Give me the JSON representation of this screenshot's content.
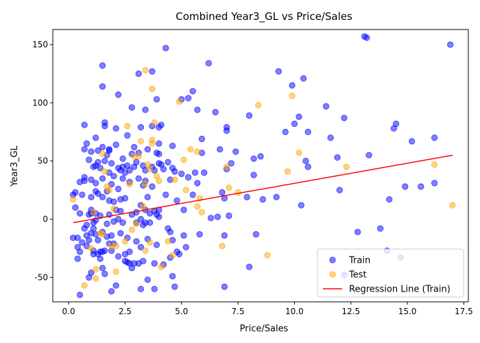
{
  "chart_data": {
    "type": "scatter",
    "title": "Combined Year3_GL vs Price/Sales",
    "xlabel": "Price/Sales",
    "ylabel": "Year3_GL",
    "xlim": [
      -0.7,
      17.7
    ],
    "ylim": [
      -71,
      163
    ],
    "xticks": [
      "0.0",
      "2.5",
      "5.0",
      "7.5",
      "10.0",
      "12.5",
      "15.0",
      "17.5"
    ],
    "xtick_values": [
      0,
      2.5,
      5,
      7.5,
      10,
      12.5,
      15,
      17.5
    ],
    "yticks": [
      "-50",
      "0",
      "50",
      "100",
      "150"
    ],
    "ytick_values": [
      -50,
      0,
      50,
      100,
      150
    ],
    "grid": false,
    "legend": {
      "placement": "bottom-right",
      "entries": [
        {
          "label": "Train",
          "kind": "marker",
          "color": "#0000ff"
        },
        {
          "label": "Test",
          "kind": "marker",
          "color": "#ffa500"
        },
        {
          "label": "Regression Line (Train)",
          "kind": "line",
          "color": "#ff0000"
        }
      ]
    },
    "series": [
      {
        "name": "Train",
        "color": "#0000ff",
        "points": [
          [
            0.2,
            21
          ],
          [
            0.3,
            23
          ],
          [
            0.2,
            -16
          ],
          [
            0.3,
            10
          ],
          [
            0.4,
            -16
          ],
          [
            0.4,
            -24
          ],
          [
            0.4,
            -34
          ],
          [
            0.5,
            32
          ],
          [
            0.5,
            -28
          ],
          [
            0.5,
            5
          ],
          [
            0.5,
            -65
          ],
          [
            0.6,
            21
          ],
          [
            0.6,
            -20
          ],
          [
            0.7,
            33
          ],
          [
            0.7,
            36
          ],
          [
            0.7,
            60
          ],
          [
            0.7,
            81
          ],
          [
            0.7,
            -8
          ],
          [
            0.8,
            65
          ],
          [
            0.8,
            -5
          ],
          [
            0.8,
            -14
          ],
          [
            0.8,
            -23
          ],
          [
            0.9,
            -18
          ],
          [
            0.9,
            -50
          ],
          [
            0.9,
            4
          ],
          [
            0.9,
            51
          ],
          [
            1.0,
            19
          ],
          [
            1.0,
            34
          ],
          [
            1.0,
            5
          ],
          [
            1.0,
            8
          ],
          [
            1.0,
            58
          ],
          [
            1.0,
            -12
          ],
          [
            1.0,
            -46
          ],
          [
            1.1,
            -3
          ],
          [
            1.1,
            -27
          ],
          [
            1.1,
            45
          ],
          [
            1.1,
            -8
          ],
          [
            1.1,
            -30
          ],
          [
            1.2,
            70
          ],
          [
            1.2,
            46
          ],
          [
            1.2,
            24
          ],
          [
            1.2,
            31
          ],
          [
            1.2,
            -1
          ],
          [
            1.2,
            -13
          ],
          [
            1.2,
            5
          ],
          [
            1.3,
            49
          ],
          [
            1.3,
            59
          ],
          [
            1.3,
            22
          ],
          [
            1.3,
            -30
          ],
          [
            1.3,
            -18
          ],
          [
            1.4,
            44
          ],
          [
            1.4,
            3
          ],
          [
            1.4,
            -28
          ],
          [
            1.4,
            -34
          ],
          [
            1.5,
            -42
          ],
          [
            1.5,
            19
          ],
          [
            1.5,
            35
          ],
          [
            1.5,
            114
          ],
          [
            1.5,
            132
          ],
          [
            1.5,
            62
          ],
          [
            1.5,
            -11
          ],
          [
            1.5,
            -28
          ],
          [
            1.6,
            80
          ],
          [
            1.6,
            83
          ],
          [
            1.6,
            50
          ],
          [
            1.6,
            -47
          ],
          [
            1.6,
            -27
          ],
          [
            1.7,
            55
          ],
          [
            1.7,
            24
          ],
          [
            1.7,
            -15
          ],
          [
            1.7,
            -4
          ],
          [
            1.8,
            59
          ],
          [
            1.8,
            60
          ],
          [
            1.8,
            40
          ],
          [
            1.8,
            -21
          ],
          [
            1.8,
            4
          ],
          [
            1.8,
            16
          ],
          [
            1.9,
            48
          ],
          [
            1.9,
            30
          ],
          [
            1.9,
            -27
          ],
          [
            1.9,
            -14
          ],
          [
            1.9,
            -62
          ],
          [
            2.0,
            37
          ],
          [
            2.0,
            15
          ],
          [
            2.0,
            -2
          ],
          [
            2.0,
            -21
          ],
          [
            2.1,
            64
          ],
          [
            2.1,
            78
          ],
          [
            2.1,
            8
          ],
          [
            2.1,
            -57
          ],
          [
            2.2,
            107
          ],
          [
            2.2,
            44
          ],
          [
            2.2,
            26
          ],
          [
            2.2,
            0
          ],
          [
            2.2,
            -32
          ],
          [
            2.3,
            17
          ],
          [
            2.3,
            42
          ],
          [
            2.3,
            7
          ],
          [
            2.3,
            -12
          ],
          [
            2.4,
            52
          ],
          [
            2.4,
            45
          ],
          [
            2.4,
            35
          ],
          [
            2.4,
            -3
          ],
          [
            2.5,
            -36
          ],
          [
            2.5,
            -30
          ],
          [
            2.5,
            18
          ],
          [
            2.5,
            40
          ],
          [
            2.6,
            72
          ],
          [
            2.6,
            46
          ],
          [
            2.6,
            -16
          ],
          [
            2.6,
            -37
          ],
          [
            2.7,
            42
          ],
          [
            2.7,
            32
          ],
          [
            2.7,
            -28
          ],
          [
            2.7,
            -38
          ],
          [
            2.8,
            96
          ],
          [
            2.8,
            4
          ],
          [
            2.8,
            -42
          ],
          [
            2.8,
            56
          ],
          [
            2.9,
            62
          ],
          [
            2.9,
            45
          ],
          [
            2.9,
            -38
          ],
          [
            3.0,
            6
          ],
          [
            3.0,
            49
          ],
          [
            3.0,
            -3
          ],
          [
            3.0,
            -19
          ],
          [
            3.1,
            125
          ],
          [
            3.1,
            57
          ],
          [
            3.1,
            35
          ],
          [
            3.1,
            -38
          ],
          [
            3.2,
            79
          ],
          [
            3.2,
            -60
          ],
          [
            3.2,
            -24
          ],
          [
            3.2,
            0
          ],
          [
            3.2,
            12
          ],
          [
            3.3,
            46
          ],
          [
            3.3,
            29
          ],
          [
            3.3,
            -5
          ],
          [
            3.3,
            -36
          ],
          [
            3.4,
            94
          ],
          [
            3.4,
            42
          ],
          [
            3.4,
            33
          ],
          [
            3.4,
            8
          ],
          [
            3.4,
            -3
          ],
          [
            3.5,
            60
          ],
          [
            3.5,
            19
          ],
          [
            3.5,
            -52
          ],
          [
            3.5,
            -17
          ],
          [
            3.6,
            5
          ],
          [
            3.6,
            -3
          ],
          [
            3.7,
            127
          ],
          [
            3.7,
            80
          ],
          [
            3.7,
            45
          ],
          [
            3.7,
            28
          ],
          [
            3.8,
            42
          ],
          [
            3.8,
            7
          ],
          [
            3.8,
            -38
          ],
          [
            3.8,
            -60
          ],
          [
            3.9,
            103
          ],
          [
            3.9,
            57
          ],
          [
            3.9,
            -22
          ],
          [
            3.9,
            4
          ],
          [
            4.0,
            79
          ],
          [
            4.0,
            65
          ],
          [
            4.0,
            56
          ],
          [
            4.0,
            48
          ],
          [
            4.0,
            8
          ],
          [
            4.0,
            2
          ],
          [
            4.1,
            81
          ],
          [
            4.1,
            47
          ],
          [
            4.2,
            43
          ],
          [
            4.2,
            -39
          ],
          [
            4.3,
            147
          ],
          [
            4.3,
            21
          ],
          [
            4.4,
            49
          ],
          [
            4.4,
            -8
          ],
          [
            4.5,
            34
          ],
          [
            4.5,
            -33
          ],
          [
            4.5,
            -11
          ],
          [
            4.6,
            63
          ],
          [
            4.6,
            44
          ],
          [
            4.6,
            -18
          ],
          [
            4.6,
            -49
          ],
          [
            4.7,
            -58
          ],
          [
            4.7,
            41
          ],
          [
            4.8,
            16
          ],
          [
            4.8,
            -28
          ],
          [
            4.9,
            -30
          ],
          [
            5.0,
            103
          ],
          [
            5.0,
            39
          ],
          [
            5.1,
            8
          ],
          [
            5.1,
            -14
          ],
          [
            5.2,
            -24
          ],
          [
            5.3,
            104
          ],
          [
            5.3,
            36
          ],
          [
            5.5,
            110
          ],
          [
            5.5,
            21
          ],
          [
            5.6,
            40
          ],
          [
            5.7,
            94
          ],
          [
            5.7,
            31
          ],
          [
            5.8,
            -13
          ],
          [
            5.9,
            69
          ],
          [
            5.9,
            57
          ],
          [
            6.0,
            40
          ],
          [
            6.2,
            134
          ],
          [
            6.3,
            1
          ],
          [
            6.5,
            92
          ],
          [
            6.6,
            2
          ],
          [
            6.7,
            60
          ],
          [
            6.8,
            23
          ],
          [
            6.9,
            -58
          ],
          [
            6.9,
            18
          ],
          [
            6.9,
            -14
          ],
          [
            7.0,
            79
          ],
          [
            7.0,
            76
          ],
          [
            7.0,
            43
          ],
          [
            7.1,
            3
          ],
          [
            7.2,
            48
          ],
          [
            7.4,
            58
          ],
          [
            7.9,
            19
          ],
          [
            8.0,
            89
          ],
          [
            8.0,
            -41
          ],
          [
            8.2,
            38
          ],
          [
            8.2,
            52
          ],
          [
            8.3,
            -13
          ],
          [
            8.5,
            54
          ],
          [
            8.6,
            17
          ],
          [
            9.2,
            19
          ],
          [
            9.3,
            127
          ],
          [
            9.6,
            75
          ],
          [
            9.9,
            115
          ],
          [
            10.0,
            82
          ],
          [
            10.2,
            88
          ],
          [
            10.3,
            12
          ],
          [
            10.4,
            121
          ],
          [
            10.5,
            50
          ],
          [
            10.6,
            75
          ],
          [
            10.6,
            45
          ],
          [
            11.4,
            97
          ],
          [
            11.6,
            70
          ],
          [
            11.9,
            53
          ],
          [
            12.0,
            25
          ],
          [
            12.2,
            87
          ],
          [
            12.2,
            -48
          ],
          [
            12.8,
            -11
          ],
          [
            13.1,
            157
          ],
          [
            13.2,
            156
          ],
          [
            13.3,
            55
          ],
          [
            13.8,
            -8
          ],
          [
            14.1,
            -27
          ],
          [
            14.2,
            17
          ],
          [
            14.4,
            78
          ],
          [
            14.5,
            82
          ],
          [
            14.7,
            -33
          ],
          [
            14.9,
            28
          ],
          [
            15.2,
            67
          ],
          [
            15.6,
            28
          ],
          [
            16.2,
            70
          ],
          [
            16.2,
            31
          ],
          [
            16.9,
            150
          ]
        ]
      },
      {
        "name": "Test",
        "color": "#ffa500",
        "points": [
          [
            0.2,
            17
          ],
          [
            0.7,
            -57
          ],
          [
            1.0,
            -25
          ],
          [
            1.1,
            6
          ],
          [
            1.2,
            -51
          ],
          [
            1.2,
            -43
          ],
          [
            1.4,
            -12
          ],
          [
            1.5,
            56
          ],
          [
            1.5,
            -13
          ],
          [
            1.6,
            41
          ],
          [
            1.7,
            28
          ],
          [
            1.8,
            25
          ],
          [
            1.9,
            -23
          ],
          [
            2.0,
            9
          ],
          [
            2.1,
            -23
          ],
          [
            2.1,
            -45
          ],
          [
            2.5,
            -19
          ],
          [
            2.6,
            80
          ],
          [
            2.7,
            30
          ],
          [
            2.8,
            -9
          ],
          [
            2.9,
            54
          ],
          [
            3.0,
            -4
          ],
          [
            3.1,
            54
          ],
          [
            3.2,
            67
          ],
          [
            3.3,
            11
          ],
          [
            3.4,
            128
          ],
          [
            3.4,
            30
          ],
          [
            3.4,
            -27
          ],
          [
            3.5,
            47
          ],
          [
            3.6,
            43
          ],
          [
            3.6,
            -20
          ],
          [
            3.7,
            68
          ],
          [
            3.7,
            65
          ],
          [
            3.7,
            112
          ],
          [
            3.8,
            83
          ],
          [
            3.9,
            37
          ],
          [
            4.0,
            33
          ],
          [
            4.1,
            -41
          ],
          [
            4.4,
            -19
          ],
          [
            4.6,
            -31
          ],
          [
            4.7,
            34
          ],
          [
            4.9,
            101
          ],
          [
            5.1,
            51
          ],
          [
            5.2,
            25
          ],
          [
            5.4,
            60
          ],
          [
            5.7,
            58
          ],
          [
            5.7,
            11
          ],
          [
            5.8,
            18
          ],
          [
            5.9,
            6
          ],
          [
            6.8,
            -23
          ],
          [
            7.0,
            45
          ],
          [
            7.1,
            27
          ],
          [
            7.5,
            23
          ],
          [
            8.4,
            98
          ],
          [
            8.8,
            -31
          ],
          [
            9.7,
            41
          ],
          [
            9.9,
            106
          ],
          [
            10.2,
            57
          ],
          [
            12.3,
            45
          ],
          [
            16.2,
            47
          ],
          [
            17.0,
            12
          ]
        ]
      }
    ],
    "regression_line": {
      "name": "Regression Line (Train)",
      "color": "#ff0000",
      "x": [
        0.2,
        17.0
      ],
      "y": [
        -3,
        55
      ]
    }
  }
}
